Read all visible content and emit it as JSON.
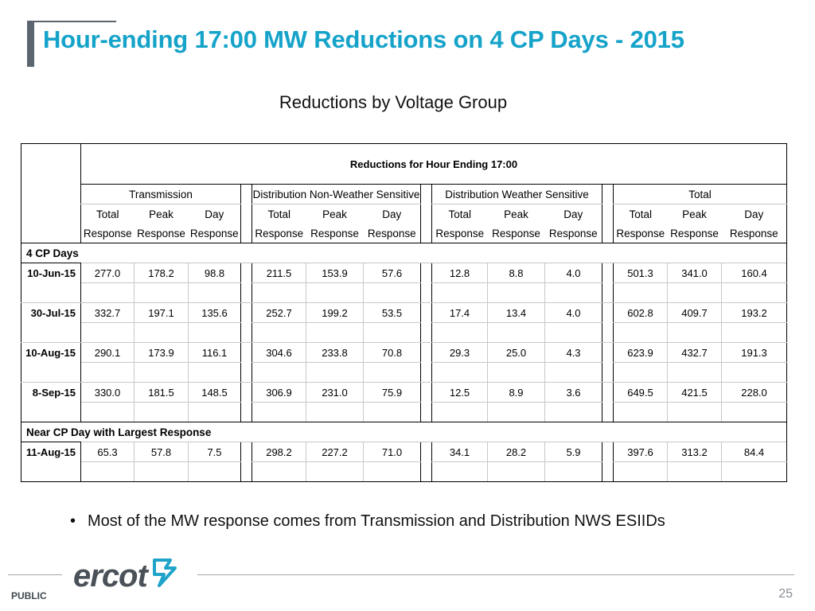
{
  "slide": {
    "title": "Hour-ending 17:00 MW Reductions on 4 CP Days - 2015",
    "subtitle": "Reductions by Voltage Group",
    "bullet": "Most of the MW response comes from Transmission and Distribution NWS ESIIDs",
    "bullet_marker": "•",
    "footer_label": "PUBLIC",
    "page_number": "25",
    "logo_text": "ercot"
  },
  "table": {
    "super_header": "Reductions for Hour Ending 17:00",
    "groups": [
      "Transmission",
      "Distribution Non-Weather Sensitive",
      "Distribution Weather Sensitive",
      "Total"
    ],
    "col_line1": [
      "Total",
      "Peak",
      "Day"
    ],
    "col_line2": [
      "Response",
      "Response",
      "Response"
    ],
    "section1_label": "4 CP Days",
    "section2_label": "Near CP Day with Largest Response",
    "rows": [
      {
        "date": "10-Jun-15",
        "values": [
          "277.0",
          "178.2",
          "98.8",
          "211.5",
          "153.9",
          "57.6",
          "12.8",
          "8.8",
          "4.0",
          "501.3",
          "341.0",
          "160.4"
        ]
      },
      {
        "date": "30-Jul-15",
        "values": [
          "332.7",
          "197.1",
          "135.6",
          "252.7",
          "199.2",
          "53.5",
          "17.4",
          "13.4",
          "4.0",
          "602.8",
          "409.7",
          "193.2"
        ]
      },
      {
        "date": "10-Aug-15",
        "values": [
          "290.1",
          "173.9",
          "116.1",
          "304.6",
          "233.8",
          "70.8",
          "29.3",
          "25.0",
          "4.3",
          "623.9",
          "432.7",
          "191.3"
        ]
      },
      {
        "date": "8-Sep-15",
        "values": [
          "330.0",
          "181.5",
          "148.5",
          "306.9",
          "231.0",
          "75.9",
          "12.5",
          "8.9",
          "3.6",
          "649.5",
          "421.5",
          "228.0"
        ]
      }
    ],
    "near_row": {
      "date": "11-Aug-15",
      "values": [
        "65.3",
        "57.8",
        "7.5",
        "298.2",
        "227.2",
        "71.0",
        "34.1",
        "28.2",
        "5.9",
        "397.6",
        "313.2",
        "84.4"
      ]
    }
  },
  "colors": {
    "title": "#16a3c9",
    "accent_bar": "#5a6570",
    "logo_icon": "#1fa3c9"
  }
}
